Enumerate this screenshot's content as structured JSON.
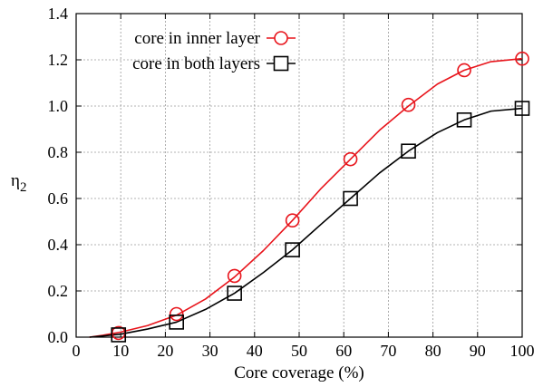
{
  "chart_data": {
    "type": "line",
    "xlabel": "Core coverage (%)",
    "ylabel_main": "η",
    "ylabel_sub": "2",
    "xlim": [
      0,
      100
    ],
    "ylim": [
      0,
      1.4
    ],
    "xticks": [
      0,
      10,
      20,
      30,
      40,
      50,
      60,
      70,
      80,
      90,
      100
    ],
    "yticks": [
      0.0,
      0.2,
      0.4,
      0.6,
      0.8,
      1.0,
      1.2,
      1.4
    ],
    "xtick_labels": [
      "0",
      "10",
      "20",
      "30",
      "40",
      "50",
      "60",
      "70",
      "80",
      "90",
      "100"
    ],
    "ytick_labels": [
      "0.0",
      "0.2",
      "0.4",
      "0.6",
      "0.8",
      "1.0",
      "1.2",
      "1.4"
    ],
    "grid": true,
    "legend_position": "top-left",
    "series": [
      {
        "name": "core in inner layer",
        "color": "#e8141b",
        "marker": "circle",
        "line_x": [
          3,
          6,
          10,
          16,
          22.5,
          29,
          35.5,
          42,
          48.5,
          55,
          61.5,
          68,
          74.5,
          81,
          87,
          93,
          100
        ],
        "line_y": [
          0.0,
          0.008,
          0.022,
          0.05,
          0.095,
          0.165,
          0.26,
          0.375,
          0.505,
          0.645,
          0.77,
          0.895,
          1.0,
          1.095,
          1.155,
          1.192,
          1.205
        ],
        "marker_x": [
          9.5,
          22.5,
          35.5,
          48.5,
          61.5,
          74.5,
          87,
          100
        ],
        "marker_y": [
          0.018,
          0.1,
          0.265,
          0.505,
          0.77,
          1.005,
          1.155,
          1.205
        ]
      },
      {
        "name": "core in both layers",
        "color": "#000000",
        "marker": "square",
        "line_x": [
          3,
          6,
          10,
          16,
          22.5,
          29,
          35.5,
          42,
          48.5,
          55,
          61.5,
          68,
          74.5,
          81,
          87,
          93,
          100
        ],
        "line_y": [
          0.0,
          0.005,
          0.013,
          0.035,
          0.065,
          0.12,
          0.19,
          0.28,
          0.378,
          0.49,
          0.6,
          0.71,
          0.805,
          0.885,
          0.94,
          0.978,
          0.99
        ],
        "marker_x": [
          9.5,
          22.5,
          35.5,
          48.5,
          61.5,
          74.5,
          87,
          100
        ],
        "marker_y": [
          0.01,
          0.065,
          0.19,
          0.378,
          0.6,
          0.805,
          0.94,
          0.99
        ]
      }
    ]
  }
}
